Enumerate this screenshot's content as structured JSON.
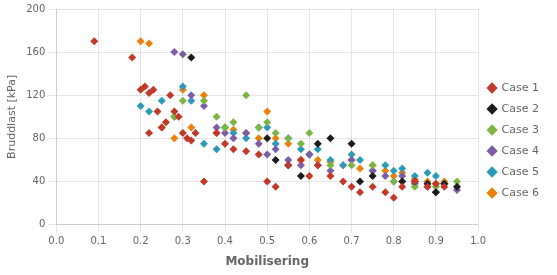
{
  "chart_data": {
    "type": "scatter",
    "xlabel": "Mobilisering",
    "ylabel": "Bruddlast [kPa]",
    "xlim": [
      0.0,
      1.0
    ],
    "ylim": [
      0,
      200
    ],
    "xticks": [
      {
        "value": 0.0,
        "label": "0.0"
      },
      0.1,
      0.2,
      0.3,
      0.4,
      0.5,
      0.6,
      0.7,
      0.8,
      0.9,
      {
        "value": 1.0,
        "label": "1.0"
      }
    ],
    "yticks": [
      0,
      40,
      80,
      120,
      160,
      200
    ],
    "grid": true,
    "legend": "right",
    "marker": "diamond",
    "series": [
      {
        "name": "Case 1",
        "color": "#C0392B",
        "x": [
          0.09,
          0.18,
          0.2,
          0.21,
          0.22,
          0.22,
          0.23,
          0.24,
          0.25,
          0.26,
          0.27,
          0.28,
          0.29,
          0.3,
          0.31,
          0.32,
          0.33,
          0.35,
          0.38,
          0.4,
          0.42,
          0.45,
          0.48,
          0.5,
          0.52,
          0.55,
          0.58,
          0.6,
          0.62,
          0.65,
          0.68,
          0.7,
          0.72,
          0.75,
          0.78,
          0.8,
          0.82,
          0.85,
          0.88,
          0.9,
          0.92
        ],
        "values": [
          170,
          155,
          125,
          128,
          122,
          85,
          125,
          105,
          90,
          95,
          120,
          105,
          100,
          85,
          80,
          78,
          85,
          40,
          85,
          75,
          70,
          68,
          65,
          40,
          35,
          55,
          60,
          45,
          55,
          45,
          40,
          35,
          30,
          35,
          30,
          25,
          35,
          40,
          35,
          38,
          35
        ]
      },
      {
        "name": "Case 2",
        "color": "#1C1C1C",
        "x": [
          0.32,
          0.5,
          0.52,
          0.55,
          0.58,
          0.62,
          0.65,
          0.7,
          0.72,
          0.75,
          0.82,
          0.85,
          0.88,
          0.9,
          0.92,
          0.95
        ],
        "values": [
          155,
          80,
          60,
          55,
          45,
          75,
          80,
          75,
          40,
          45,
          40,
          40,
          38,
          30,
          38,
          35
        ]
      },
      {
        "name": "Case 3",
        "color": "#7DB544",
        "x": [
          0.28,
          0.3,
          0.35,
          0.38,
          0.4,
          0.42,
          0.45,
          0.48,
          0.5,
          0.52,
          0.55,
          0.58,
          0.6,
          0.65,
          0.7,
          0.75,
          0.8,
          0.85,
          0.9,
          0.92,
          0.95
        ],
        "values": [
          100,
          115,
          115,
          100,
          90,
          95,
          120,
          90,
          95,
          85,
          80,
          75,
          85,
          55,
          55,
          55,
          40,
          35,
          35,
          38,
          40
        ]
      },
      {
        "name": "Case 4",
        "color": "#7B5EA7",
        "x": [
          0.28,
          0.3,
          0.32,
          0.35,
          0.38,
          0.4,
          0.42,
          0.45,
          0.48,
          0.5,
          0.52,
          0.55,
          0.58,
          0.6,
          0.62,
          0.65,
          0.7,
          0.75,
          0.78,
          0.8,
          0.82,
          0.85,
          0.88,
          0.9,
          0.92,
          0.95
        ],
        "values": [
          160,
          158,
          120,
          110,
          90,
          85,
          80,
          85,
          75,
          65,
          70,
          60,
          55,
          65,
          55,
          50,
          60,
          50,
          45,
          40,
          45,
          38,
          35,
          30,
          38,
          32
        ]
      },
      {
        "name": "Case 5",
        "color": "#2E9AB8",
        "x": [
          0.2,
          0.22,
          0.25,
          0.28,
          0.3,
          0.32,
          0.35,
          0.38,
          0.4,
          0.42,
          0.45,
          0.48,
          0.5,
          0.52,
          0.55,
          0.58,
          0.6,
          0.62,
          0.65,
          0.68,
          0.7,
          0.72,
          0.75,
          0.78,
          0.8,
          0.82,
          0.85,
          0.88,
          0.9
        ],
        "values": [
          110,
          105,
          115,
          100,
          128,
          115,
          75,
          70,
          90,
          85,
          80,
          90,
          90,
          75,
          80,
          70,
          65,
          70,
          60,
          55,
          65,
          60,
          50,
          55,
          50,
          52,
          45,
          48,
          45
        ]
      },
      {
        "name": "Case 6",
        "color": "#E8820C",
        "x": [
          0.2,
          0.22,
          0.25,
          0.28,
          0.3,
          0.32,
          0.35,
          0.38,
          0.4,
          0.42,
          0.45,
          0.48,
          0.5,
          0.52,
          0.55,
          0.58,
          0.6,
          0.62,
          0.65,
          0.68,
          0.7,
          0.72,
          0.75,
          0.78,
          0.8,
          0.82,
          0.85,
          0.88,
          0.9,
          0.92
        ],
        "values": [
          170,
          168,
          90,
          80,
          125,
          90,
          120,
          85,
          90,
          88,
          85,
          80,
          105,
          80,
          75,
          60,
          65,
          60,
          58,
          55,
          60,
          52,
          55,
          50,
          45,
          48,
          42,
          40,
          38,
          40
        ]
      }
    ]
  }
}
